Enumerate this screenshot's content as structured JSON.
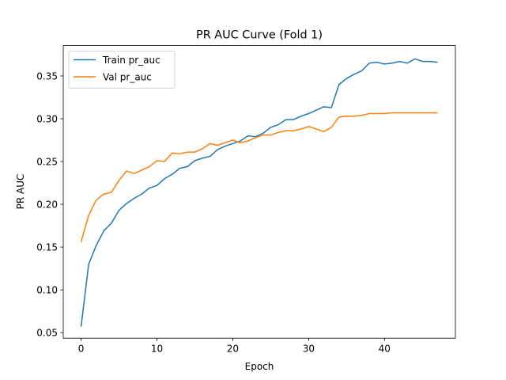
{
  "chart_data": {
    "type": "line",
    "title": "PR AUC Curve (Fold 1)",
    "xlabel": "Epoch",
    "ylabel": "PR AUC",
    "xlim": [
      -2.35,
      49.35
    ],
    "ylim": [
      0.0435,
      0.3855
    ],
    "xticks": [
      0,
      10,
      20,
      30,
      40
    ],
    "yticks": [
      0.05,
      0.1,
      0.15,
      0.2,
      0.25,
      0.3,
      0.35
    ],
    "ytick_labels": [
      "0.05",
      "0.10",
      "0.15",
      "0.20",
      "0.25",
      "0.30",
      "0.35"
    ],
    "grid": false,
    "legend": "upper-left",
    "x": [
      0,
      1,
      2,
      3,
      4,
      5,
      6,
      7,
      8,
      9,
      10,
      11,
      12,
      13,
      14,
      15,
      16,
      17,
      18,
      19,
      20,
      21,
      22,
      23,
      24,
      25,
      26,
      27,
      28,
      29,
      30,
      31,
      32,
      33,
      34,
      35,
      36,
      37,
      38,
      39,
      40,
      41,
      42,
      43,
      44,
      45,
      46,
      47
    ],
    "series": [
      {
        "name": "Train pr_auc",
        "color": "#1f77b4",
        "values": [
          0.057,
          0.13,
          0.152,
          0.169,
          0.178,
          0.193,
          0.201,
          0.207,
          0.212,
          0.219,
          0.222,
          0.23,
          0.235,
          0.242,
          0.244,
          0.251,
          0.254,
          0.256,
          0.264,
          0.268,
          0.271,
          0.274,
          0.28,
          0.279,
          0.283,
          0.29,
          0.293,
          0.299,
          0.299,
          0.303,
          0.306,
          0.31,
          0.314,
          0.313,
          0.34,
          0.347,
          0.352,
          0.356,
          0.365,
          0.366,
          0.364,
          0.365,
          0.367,
          0.365,
          0.37,
          0.367,
          0.367,
          0.366
        ]
      },
      {
        "name": "Val pr_auc",
        "color": "#ff7f0e",
        "values": [
          0.156,
          0.187,
          0.205,
          0.212,
          0.214,
          0.228,
          0.239,
          0.236,
          0.24,
          0.244,
          0.251,
          0.25,
          0.26,
          0.259,
          0.261,
          0.261,
          0.265,
          0.271,
          0.269,
          0.272,
          0.275,
          0.272,
          0.274,
          0.278,
          0.281,
          0.281,
          0.284,
          0.286,
          0.286,
          0.288,
          0.291,
          0.288,
          0.285,
          0.29,
          0.302,
          0.303,
          0.303,
          0.304,
          0.306,
          0.306,
          0.306,
          0.307,
          0.307,
          0.307,
          0.307,
          0.307,
          0.307,
          0.307
        ]
      }
    ]
  }
}
